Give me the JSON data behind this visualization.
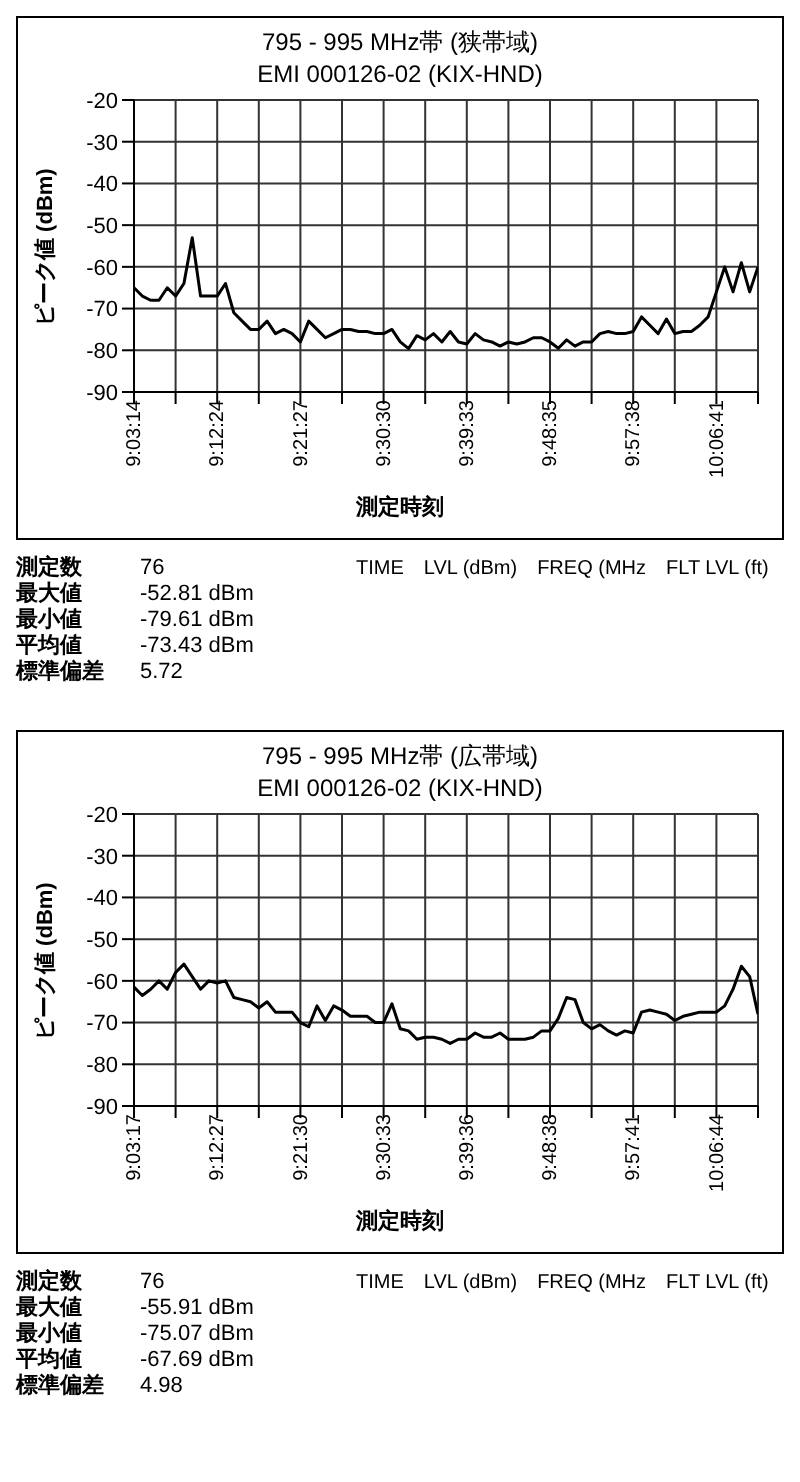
{
  "chart_data": [
    {
      "type": "line",
      "title": "795 - 995 MHz帯 (狭帯域)",
      "subtitle": "EMI 000126-02 (KIX-HND)",
      "xlabel": "測定時刻",
      "ylabel": "ピーク値 (dBm)",
      "categories": [
        "9:03:14",
        null,
        null,
        null,
        null,
        null,
        null,
        null,
        null,
        null,
        "9:12:24",
        null,
        null,
        null,
        null,
        null,
        null,
        null,
        null,
        null,
        "9:21:27",
        null,
        null,
        null,
        null,
        null,
        null,
        null,
        null,
        null,
        "9:30:30",
        null,
        null,
        null,
        null,
        null,
        null,
        null,
        null,
        null,
        "9:39:33",
        null,
        null,
        null,
        null,
        null,
        null,
        null,
        null,
        null,
        "9:48:35",
        null,
        null,
        null,
        null,
        null,
        null,
        null,
        null,
        null,
        "9:57:38",
        null,
        null,
        null,
        null,
        null,
        null,
        null,
        null,
        null,
        "10:06:41",
        null,
        null,
        null,
        null,
        null
      ],
      "series": [
        {
          "color": "#000000",
          "values": [
            -65,
            -67,
            -68,
            -68,
            -65,
            -67,
            -64,
            -53,
            -67,
            -67,
            -67,
            -64,
            -71,
            -73,
            -75,
            -75,
            -73,
            -76,
            -75,
            -76,
            -78,
            -73,
            -75,
            -77,
            -76,
            -75,
            -75,
            -75.5,
            -75.5,
            -76,
            -76,
            -75,
            -78,
            -79.6,
            -76.5,
            -77.5,
            -76,
            -78,
            -75.5,
            -78,
            -78.5,
            -76,
            -77.5,
            -78,
            -79,
            -78,
            -78.5,
            -78,
            -77,
            -77,
            -78,
            -79.5,
            -77.5,
            -79,
            -78,
            -78,
            -76,
            -75.5,
            -76,
            -76,
            -75.5,
            -72,
            -74,
            -76,
            -72.5,
            -76,
            -75.5,
            -75.5,
            -74,
            -72,
            -66,
            -60,
            -66,
            -59,
            -66,
            -60
          ]
        }
      ],
      "ylim": [
        -90,
        -20
      ],
      "yticks": [
        -90,
        -80,
        -70,
        -60,
        -50,
        -40,
        -30,
        -20
      ],
      "grid": true,
      "legend": false,
      "marker": "none",
      "line_style": "solid",
      "annotations": [
        "測定数 76",
        "最大値 -52.81 dBm",
        "最小値 -79.61 dBm",
        "平均値 -73.43 dBm",
        "標準偏差 5.72",
        "TIME",
        "LVL (dBm)",
        "FREQ (MHz",
        "FLT LVL (ft)"
      ]
    },
    {
      "type": "line",
      "title": "795 - 995 MHz帯 (広帯域)",
      "subtitle": "EMI 000126-02 (KIX-HND)",
      "xlabel": "測定時刻",
      "ylabel": "ピーク値 (dBm)",
      "categories": [
        "9:03:17",
        null,
        null,
        null,
        null,
        null,
        null,
        null,
        null,
        null,
        "9:12:27",
        null,
        null,
        null,
        null,
        null,
        null,
        null,
        null,
        null,
        "9:21:30",
        null,
        null,
        null,
        null,
        null,
        null,
        null,
        null,
        null,
        "9:30:33",
        null,
        null,
        null,
        null,
        null,
        null,
        null,
        null,
        null,
        "9:39:36",
        null,
        null,
        null,
        null,
        null,
        null,
        null,
        null,
        null,
        "9:48:38",
        null,
        null,
        null,
        null,
        null,
        null,
        null,
        null,
        null,
        "9:57:41",
        null,
        null,
        null,
        null,
        null,
        null,
        null,
        null,
        null,
        "10:06:44",
        null,
        null,
        null,
        null,
        null
      ],
      "series": [
        {
          "color": "#000000",
          "values": [
            -61.5,
            -63.5,
            -62,
            -60,
            -62,
            -58,
            -56,
            -59,
            -62,
            -60,
            -60.5,
            -60,
            -64,
            -64.5,
            -65,
            -66.5,
            -65,
            -67.5,
            -67.5,
            -67.5,
            -70,
            -71,
            -66,
            -69.5,
            -66,
            -67,
            -68.5,
            -68.5,
            -68.5,
            -70,
            -70,
            -65.5,
            -71.5,
            -72,
            -74,
            -73.5,
            -73.5,
            -74,
            -75,
            -74,
            -74,
            -72.5,
            -73.5,
            -73.5,
            -72.5,
            -74,
            -74,
            -74,
            -73.5,
            -72,
            -72,
            -69,
            -64,
            -64.5,
            -70,
            -71.5,
            -70.5,
            -72,
            -73,
            -72,
            -72.5,
            -67.5,
            -67,
            -67.5,
            -68,
            -69.5,
            -68.5,
            -68,
            -67.5,
            -67.5,
            -67.5,
            -66,
            -62,
            -56.5,
            -59,
            -68
          ]
        }
      ],
      "ylim": [
        -90,
        -20
      ],
      "yticks": [
        -90,
        -80,
        -70,
        -60,
        -50,
        -40,
        -30,
        -20
      ],
      "grid": true,
      "legend": false,
      "marker": "none",
      "line_style": "solid",
      "annotations": [
        "測定数 76",
        "最大値 -55.91 dBm",
        "最小値 -75.07 dBm",
        "平均値 -67.69 dBm",
        "標準偏差 4.98",
        "TIME",
        "LVL (dBm)",
        "FREQ (MHz",
        "FLT LVL (ft)"
      ]
    }
  ]
}
